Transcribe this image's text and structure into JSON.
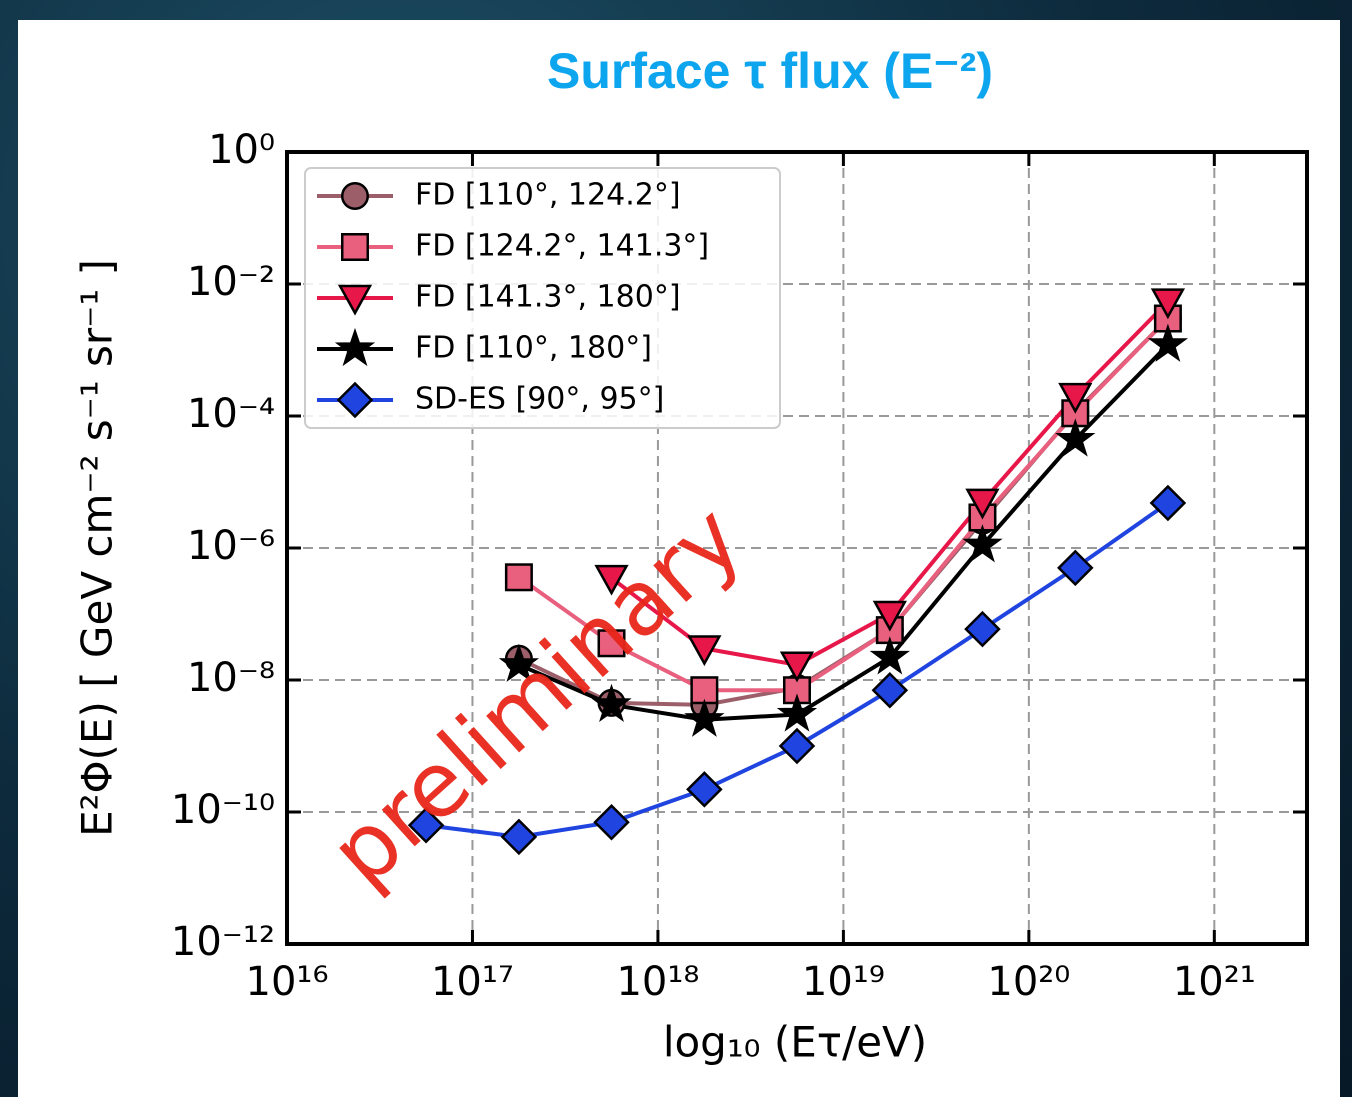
{
  "chart_data": {
    "type": "line",
    "title": "Surface τ flux (E⁻²)",
    "x_label": "log₁₀ (Eτ/eV)",
    "y_label": "E²Φ(E)  [ GeV cm⁻² s⁻¹ sr⁻¹ ]",
    "annotation": "preliminary",
    "x_log": true,
    "y_log": true,
    "grid": true,
    "legend": "upper left",
    "xlim": [
      1e+16,
      3.16e+21
    ],
    "ylim": [
      1e-12,
      1
    ],
    "xticks": [
      {
        "value": 1e+16,
        "label": "10¹⁶"
      },
      {
        "value": 1e+17,
        "label": "10¹⁷"
      },
      {
        "value": 1e+18,
        "label": "10¹⁸"
      },
      {
        "value": 1e+19,
        "label": "10¹⁹"
      },
      {
        "value": 1e+20,
        "label": "10²⁰"
      },
      {
        "value": 1e+21,
        "label": "10²¹"
      }
    ],
    "yticks": [
      {
        "value": 1e-12,
        "label": "10⁻¹²"
      },
      {
        "value": 1e-10,
        "label": "10⁻¹⁰"
      },
      {
        "value": 1e-08,
        "label": "10⁻⁸"
      },
      {
        "value": 1e-06,
        "label": "10⁻⁶"
      },
      {
        "value": 0.0001,
        "label": "10⁻⁴"
      },
      {
        "value": 0.01,
        "label": "10⁻²"
      },
      {
        "value": 1,
        "label": "10⁰"
      }
    ],
    "x": [
      5.62e+16,
      1.78e+17,
      5.62e+17,
      1.78e+18,
      5.62e+18,
      1.78e+19,
      5.62e+19,
      1.78e+20,
      5.62e+20
    ],
    "series": [
      {
        "name": "FD [110°, 124.2°]",
        "color": "#9c5f6a",
        "marker": "circle",
        "values": [
          null,
          2.1e-08,
          4.5e-09,
          4.2e-09,
          7.6e-09,
          5.7e-08,
          2.6e-06,
          0.000115,
          0.003
        ]
      },
      {
        "name": "FD [124.2°, 141.3°]",
        "color": "#e8607e",
        "marker": "square",
        "values": [
          null,
          3.6e-07,
          3.6e-08,
          7e-09,
          7e-09,
          5.7e-08,
          2.9e-06,
          0.00011,
          0.003
        ]
      },
      {
        "name": "FD [141.3°, 180°]",
        "color": "#e8174a",
        "marker": "triangle-down",
        "values": [
          null,
          null,
          3.5e-07,
          3e-08,
          1.7e-08,
          1e-07,
          5e-06,
          0.0002,
          0.0054
        ]
      },
      {
        "name": "FD [110°, 180°]",
        "color": "#000000",
        "marker": "star",
        "values": [
          null,
          1.7e-08,
          4.2e-09,
          2.5e-09,
          3e-09,
          2.2e-08,
          1.1e-06,
          4.4e-05,
          0.0012
        ]
      },
      {
        "name": "SD-ES [90°, 95°]",
        "color": "#1f44e0",
        "marker": "diamond",
        "values": [
          6.3e-11,
          4.2e-11,
          7e-11,
          2.2e-10,
          1e-09,
          7e-09,
          5.9e-08,
          5e-07,
          4.8e-06
        ]
      }
    ]
  }
}
